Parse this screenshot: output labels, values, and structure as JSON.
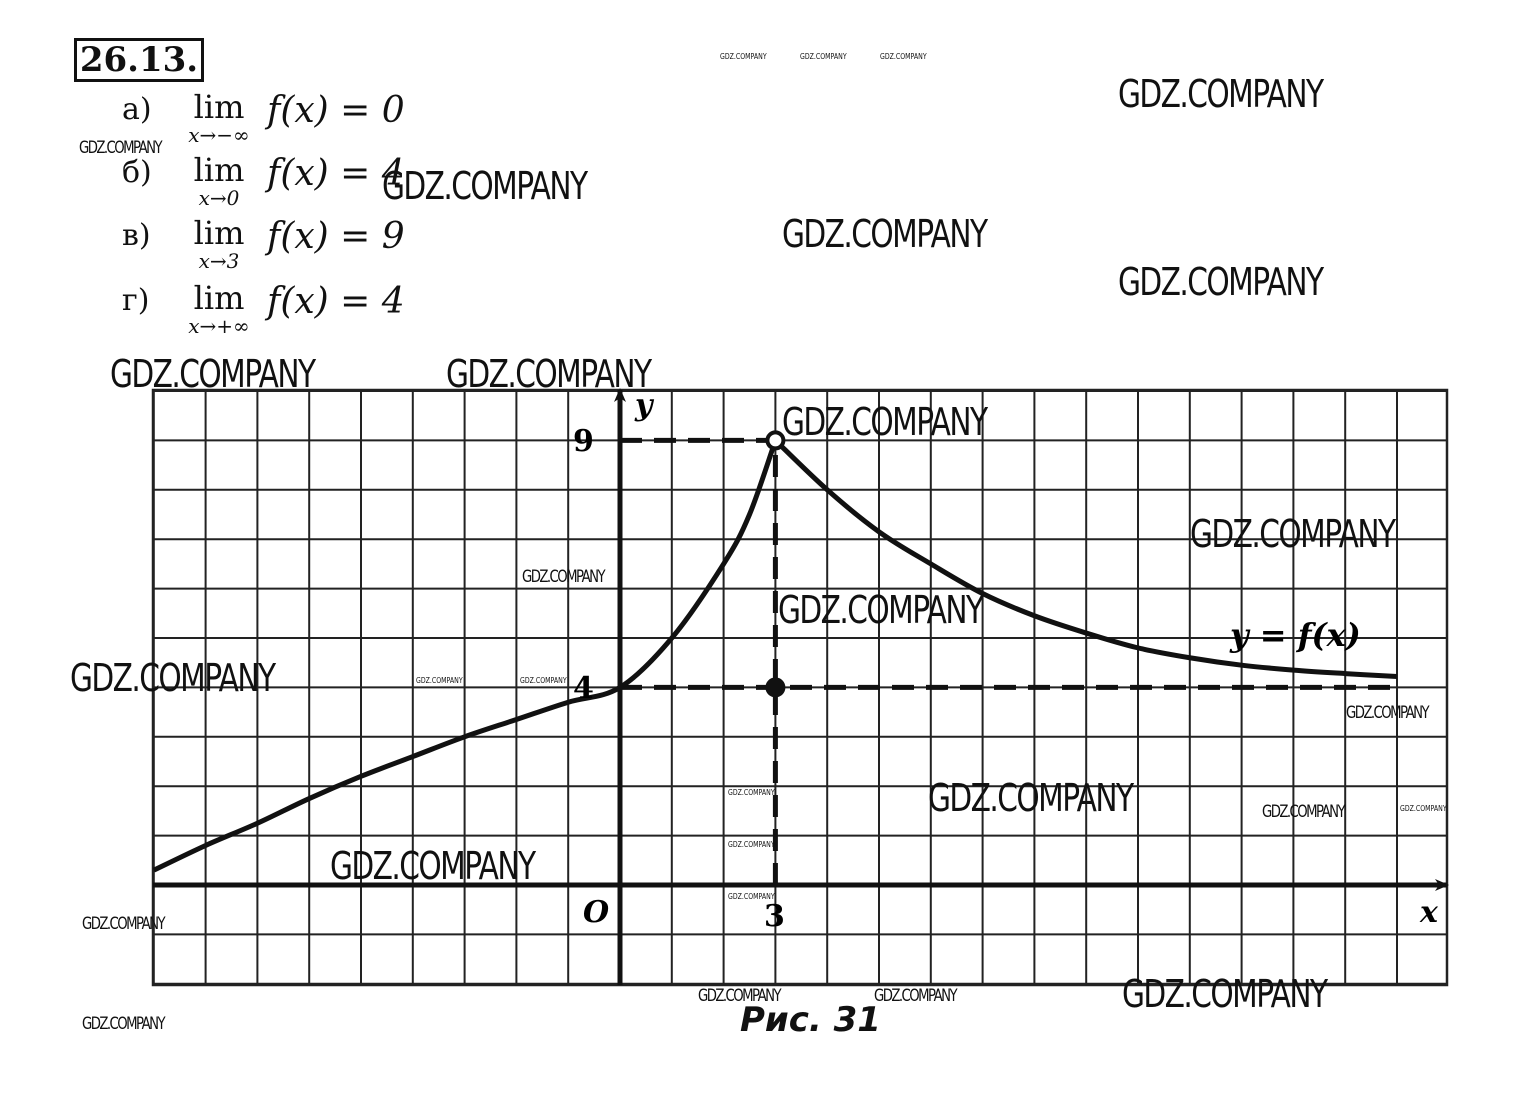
{
  "problem_number": "26.13.",
  "items": [
    {
      "label": "а)",
      "lim": "lim",
      "sub": "x→−∞",
      "expr": "f(x) = 0"
    },
    {
      "label": "б)",
      "lim": "lim",
      "sub": "x→0",
      "expr": "f(x) = 4"
    },
    {
      "label": "в)",
      "lim": "lim",
      "sub": "x→3",
      "expr": "f(x) = 9"
    },
    {
      "label": "г)",
      "lim": "lim",
      "sub": "x→+∞",
      "expr": "f(x) = 4"
    }
  ],
  "watermark": "GDZ.COMPANY",
  "chart_data": {
    "type": "line",
    "xlabel": "x",
    "ylabel": "y",
    "origin_label": "O",
    "x_tick_labels": [
      "3"
    ],
    "y_tick_labels": [
      "9",
      "4"
    ],
    "curve_label": "y = f(x)",
    "grid": true,
    "xlim": [
      -9,
      16
    ],
    "ylim": [
      -2,
      10
    ],
    "series": [
      {
        "name": "y = f(x)",
        "left_branch": {
          "x": [
            -9,
            -8,
            -7,
            -6,
            -5,
            -4,
            -3,
            -2,
            -1,
            0,
            1,
            2,
            2.5,
            3
          ],
          "y": [
            0.3,
            0.8,
            1.25,
            1.75,
            2.2,
            2.6,
            3.0,
            3.35,
            3.7,
            4.0,
            5.0,
            6.5,
            7.5,
            9
          ]
        },
        "right_branch": {
          "x": [
            3,
            4,
            5,
            6,
            7,
            8,
            9,
            10,
            11,
            12,
            13,
            14,
            15
          ],
          "y": [
            9,
            8.0,
            7.15,
            6.5,
            5.9,
            5.45,
            5.1,
            4.8,
            4.6,
            4.45,
            4.35,
            4.28,
            4.22
          ]
        }
      }
    ],
    "points": [
      {
        "x": 3,
        "y": 9,
        "type": "open"
      },
      {
        "x": 3,
        "y": 4,
        "type": "filled"
      }
    ],
    "dashed_lines": [
      {
        "from": [
          0,
          9
        ],
        "to": [
          3,
          9
        ]
      },
      {
        "from": [
          3,
          0
        ],
        "to": [
          3,
          9
        ]
      },
      {
        "from": [
          0,
          4
        ],
        "to": [
          15,
          4
        ]
      }
    ]
  },
  "caption": "Рис. 31"
}
